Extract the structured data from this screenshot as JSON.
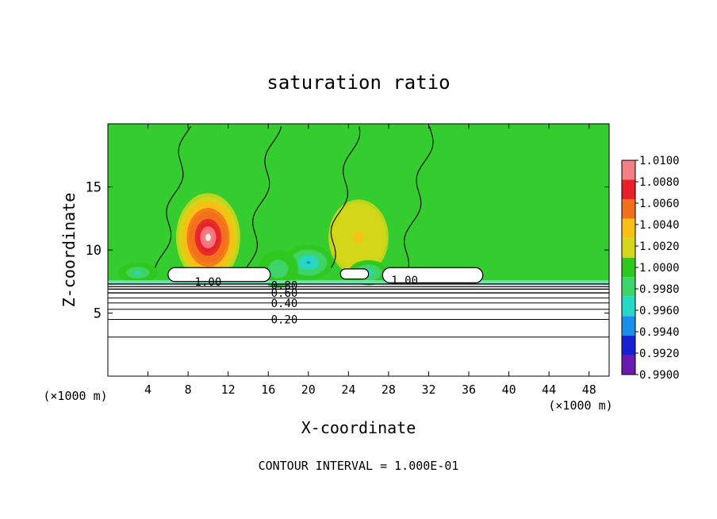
{
  "chart_data": {
    "type": "heatmap",
    "title": "saturation ratio",
    "xlabel": "X-coordinate",
    "ylabel": "Z-coordinate",
    "x_unit_label": "(×1000 m)",
    "xlim": [
      0,
      50
    ],
    "ylim": [
      0,
      20
    ],
    "x_ticks": [
      4,
      8,
      12,
      16,
      20,
      24,
      28,
      32,
      36,
      40,
      44,
      48
    ],
    "y_ticks": [
      5,
      10,
      15
    ],
    "footer": "CONTOUR INTERVAL = 1.000E-01",
    "colorbar": {
      "levels": [
        "1.0100",
        "1.0080",
        "1.0060",
        "1.0040",
        "1.0020",
        "1.0000",
        "0.9980",
        "0.9960",
        "0.9940",
        "0.9920",
        "0.9900"
      ],
      "colors": [
        "#f47f86",
        "#e8202a",
        "#f2701c",
        "#f9c014",
        "#d4d61a",
        "#2fc81e",
        "#3fd46a",
        "#26d8c6",
        "#1a8ee8",
        "#1620d0",
        "#6a1ab0"
      ]
    },
    "contour_labels": [
      {
        "text": "1.00",
        "x": 10,
        "z": 7.5
      },
      {
        "text": "1.00",
        "x": 29.6,
        "z": 7.6
      },
      {
        "text": "0.80",
        "x": 17.6,
        "z": 7.2
      },
      {
        "text": "0.60",
        "x": 17.6,
        "z": 6.6
      },
      {
        "text": "0.40",
        "x": 17.6,
        "z": 5.8
      },
      {
        "text": "0.20",
        "x": 17.6,
        "z": 4.5
      }
    ],
    "hotspots": [
      {
        "x": 10,
        "z": 11,
        "value": 1.01,
        "spread_x": 3.2,
        "spread_z": 3.5
      },
      {
        "x": 25,
        "z": 11,
        "value": 1.0022,
        "spread_x": 3,
        "spread_z": 3
      },
      {
        "x": 20,
        "z": 9,
        "value": 0.9935,
        "spread_x": 2.5,
        "spread_z": 1.4
      },
      {
        "x": 17,
        "z": 8.5,
        "value": 0.996,
        "spread_x": 2,
        "spread_z": 1.5
      },
      {
        "x": 26,
        "z": 8.2,
        "value": 0.995,
        "spread_x": 2,
        "spread_z": 1
      },
      {
        "x": 3,
        "z": 8.2,
        "value": 0.9955,
        "spread_x": 2,
        "spread_z": 0.8
      }
    ],
    "grid": false
  }
}
